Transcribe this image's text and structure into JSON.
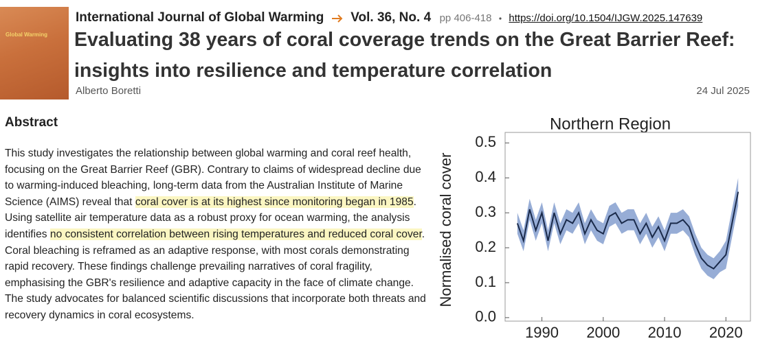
{
  "header": {
    "cover_text": "Global Warming",
    "journal": "International Journal of Global Warming",
    "volume": "Vol. 36, No. 4",
    "pages": "pp 406-418",
    "doi": "https://doi.org/10.1504/IJGW.2025.147639",
    "title": "Evaluating 38 years of coral coverage trends on the Great Barrier Reef: insights into resilience and temperature correlation",
    "author": "Alberto Boretti",
    "date": "24 Jul 2025"
  },
  "abstract": {
    "heading": "Abstract",
    "segments": [
      {
        "text": "This study investigates the relationship between global warming and coral reef health, focusing on the Great Barrier Reef (GBR). Contrary to claims of widespread decline due to warming-induced bleaching, long-term data from the Australian Institute of Marine Science (AIMS) reveal that ",
        "highlighted": false
      },
      {
        "text": "coral cover is at its highest since monitoring began in 1985",
        "highlighted": true
      },
      {
        "text": ". Using satellite air temperature data as a robust proxy for ocean warming, the analysis identifies ",
        "highlighted": false
      },
      {
        "text": "no consistent correlation between rising temperatures and reduced coral cover",
        "highlighted": true
      },
      {
        "text": ". Coral bleaching is reframed as an adaptive response, with most corals demonstrating rapid recovery. These findings challenge prevailing narratives of coral fragility, emphasising the GBR's resilience and adaptive capacity in the face of climate change. The study advocates for balanced scientific discussions that incorporate both threats and recovery dynamics in coral ecosystems.",
        "highlighted": false
      }
    ]
  },
  "chart_data": {
    "type": "line",
    "title": "Northern Region",
    "y_label": "Normalised coral cover",
    "x": [
      1986,
      1987,
      1988,
      1989,
      1990,
      1991,
      1992,
      1993,
      1994,
      1995,
      1996,
      1997,
      1998,
      1999,
      2000,
      2001,
      2002,
      2003,
      2004,
      2005,
      2006,
      2007,
      2008,
      2009,
      2010,
      2011,
      2012,
      2013,
      2014,
      2015,
      2016,
      2017,
      2018,
      2019,
      2020,
      2021,
      2022
    ],
    "values": [
      0.27,
      0.22,
      0.31,
      0.25,
      0.3,
      0.22,
      0.3,
      0.24,
      0.28,
      0.27,
      0.3,
      0.24,
      0.28,
      0.25,
      0.24,
      0.29,
      0.3,
      0.27,
      0.28,
      0.28,
      0.24,
      0.27,
      0.23,
      0.26,
      0.22,
      0.27,
      0.27,
      0.28,
      0.26,
      0.21,
      0.17,
      0.15,
      0.14,
      0.16,
      0.18,
      0.27,
      0.36
    ],
    "color": "#1a2a4a",
    "band": {
      "upper": [
        0.3,
        0.25,
        0.34,
        0.28,
        0.33,
        0.25,
        0.33,
        0.27,
        0.31,
        0.3,
        0.33,
        0.27,
        0.31,
        0.28,
        0.27,
        0.32,
        0.33,
        0.3,
        0.31,
        0.31,
        0.27,
        0.3,
        0.26,
        0.29,
        0.25,
        0.3,
        0.3,
        0.31,
        0.29,
        0.24,
        0.2,
        0.18,
        0.17,
        0.19,
        0.22,
        0.31,
        0.4
      ],
      "lower": [
        0.24,
        0.19,
        0.28,
        0.22,
        0.27,
        0.19,
        0.27,
        0.21,
        0.25,
        0.24,
        0.27,
        0.21,
        0.25,
        0.22,
        0.21,
        0.26,
        0.27,
        0.24,
        0.25,
        0.25,
        0.21,
        0.24,
        0.2,
        0.23,
        0.19,
        0.24,
        0.24,
        0.25,
        0.23,
        0.18,
        0.14,
        0.12,
        0.11,
        0.13,
        0.14,
        0.23,
        0.32
      ],
      "color": "#7d98cc"
    },
    "xlim": [
      1984,
      2024
    ],
    "xticks": [
      1990,
      2000,
      2010,
      2020
    ],
    "ylim": [
      -0.01,
      0.53
    ],
    "yticks": [
      {
        "value": 0,
        "label": "0.0"
      },
      0.1,
      0.2,
      0.3,
      0.4,
      0.5
    ]
  }
}
